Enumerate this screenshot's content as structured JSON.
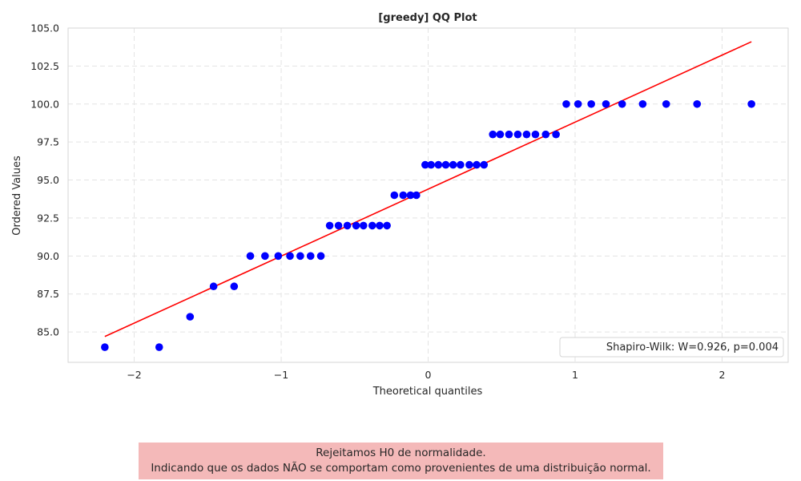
{
  "chart_data": {
    "type": "scatter",
    "title": "[greedy] QQ Plot",
    "xlabel": "Theoretical quantiles",
    "ylabel": "Ordered Values",
    "xlim": [
      -2.45,
      2.45
    ],
    "ylim": [
      83,
      105
    ],
    "xticks": [
      -2,
      -1,
      0,
      1,
      2
    ],
    "xtick_labels": [
      "−2",
      "−1",
      "0",
      "1",
      "2"
    ],
    "yticks": [
      85.0,
      87.5,
      90.0,
      92.5,
      95.0,
      97.5,
      100.0,
      102.5,
      105.0
    ],
    "ytick_labels": [
      "85.0",
      "87.5",
      "90.0",
      "92.5",
      "95.0",
      "97.5",
      "100.0",
      "102.5",
      "105.0"
    ],
    "grid": true,
    "legend_position": "lower-right",
    "legend_label": "Shapiro-Wilk: W=0.926, p=0.004",
    "points_color": "#0000ff",
    "line_color": "#ff0000",
    "points": [
      [
        -2.2,
        84
      ],
      [
        -1.83,
        84
      ],
      [
        -1.62,
        86
      ],
      [
        -1.46,
        88
      ],
      [
        -1.32,
        88
      ],
      [
        -1.21,
        90
      ],
      [
        -1.11,
        90
      ],
      [
        -1.02,
        90
      ],
      [
        -0.94,
        90
      ],
      [
        -0.87,
        90
      ],
      [
        -0.8,
        90
      ],
      [
        -0.73,
        90
      ],
      [
        -0.67,
        92
      ],
      [
        -0.61,
        92
      ],
      [
        -0.55,
        92
      ],
      [
        -0.49,
        92
      ],
      [
        -0.44,
        92
      ],
      [
        -0.38,
        92
      ],
      [
        -0.33,
        92
      ],
      [
        -0.28,
        92
      ],
      [
        -0.23,
        94
      ],
      [
        -0.17,
        94
      ],
      [
        -0.12,
        94
      ],
      [
        -0.08,
        94
      ],
      [
        -0.02,
        96
      ],
      [
        0.02,
        96
      ],
      [
        0.07,
        96
      ],
      [
        0.12,
        96
      ],
      [
        0.17,
        96
      ],
      [
        0.22,
        96
      ],
      [
        0.28,
        96
      ],
      [
        0.33,
        96
      ],
      [
        0.38,
        96
      ],
      [
        0.44,
        98
      ],
      [
        0.49,
        98
      ],
      [
        0.55,
        98
      ],
      [
        0.61,
        98
      ],
      [
        0.67,
        98
      ],
      [
        0.73,
        98
      ],
      [
        0.8,
        98
      ],
      [
        0.87,
        98
      ],
      [
        0.94,
        100
      ],
      [
        1.02,
        100
      ],
      [
        1.11,
        100
      ],
      [
        1.21,
        100
      ],
      [
        1.32,
        100
      ],
      [
        1.46,
        100
      ],
      [
        1.62,
        100
      ],
      [
        1.83,
        100
      ],
      [
        2.2,
        100
      ]
    ],
    "fit_line": {
      "x": [
        -2.2,
        2.2
      ],
      "y": [
        84.7,
        104.1
      ]
    }
  },
  "note": {
    "line1": "Rejeitamos H0 de normalidade.",
    "line2": "Indicando que os dados NÃO se comportam como provenientes de uma distribuição normal."
  }
}
